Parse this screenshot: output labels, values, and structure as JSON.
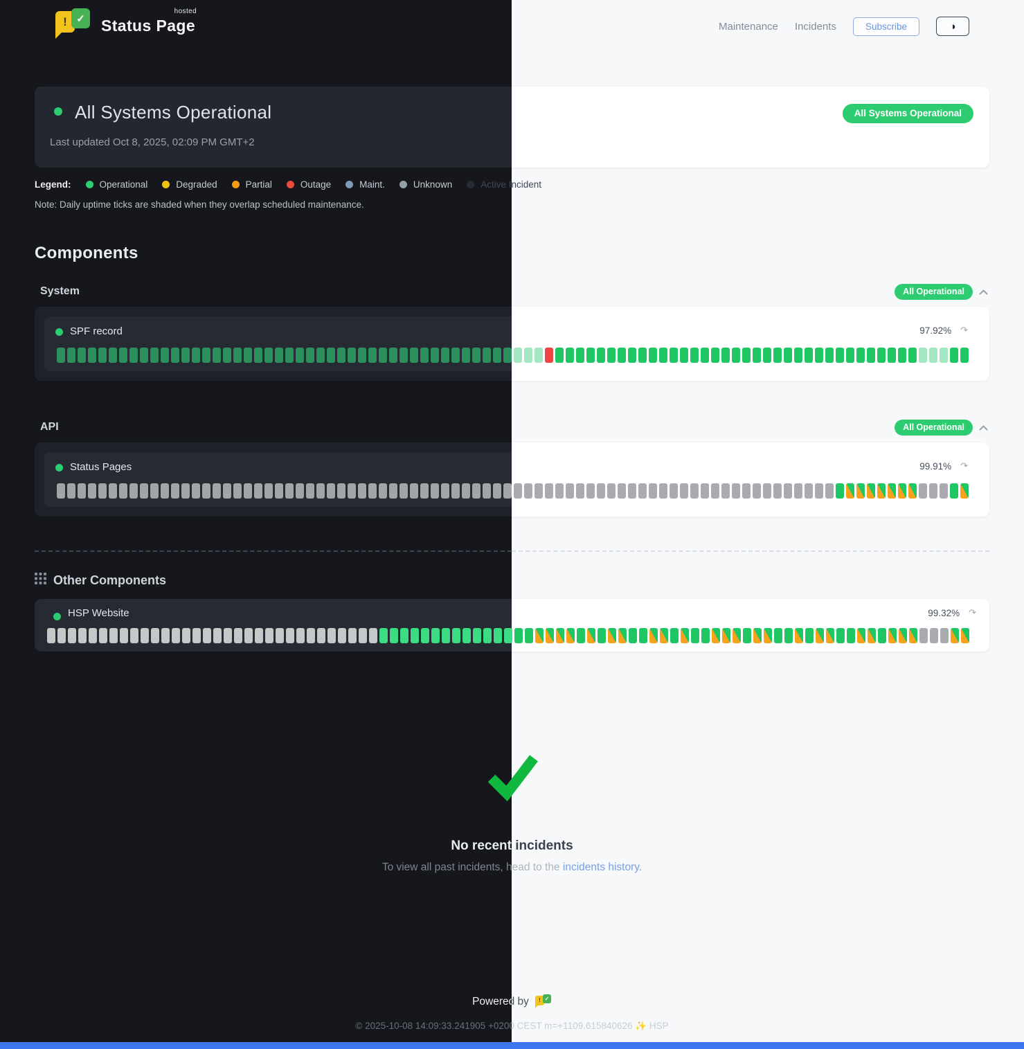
{
  "theme": {
    "accent_green": "#2ecc71",
    "tick_colors": {
      "o_light": "#1fc764",
      "f_light": "#a3e8c2",
      "x": "#ef4444",
      "u_light": "#a9abb0",
      "m_green": "#1fc764",
      "m_orange": "#f6a21a"
    }
  },
  "header": {
    "brand": "Status Page",
    "brand_sup": "hosted",
    "nav": [
      {
        "label": "Maintenance"
      },
      {
        "label": "Incidents"
      }
    ],
    "subscribe_label": "Subscribe",
    "theme_toggle_icon": "◑"
  },
  "banner": {
    "title": "All Systems Operational",
    "last_updated": "Last updated Oct 8, 2025, 02:09 PM GMT+2",
    "badge": "All Systems Operational"
  },
  "legend": {
    "label": "Legend:",
    "items": [
      {
        "label": "Operational",
        "dot_style": "background:#2ecc71"
      },
      {
        "label": "Degraded",
        "dot_style": "background:#f1c40f"
      },
      {
        "label": "Partial",
        "dot_style": "background:#f39c12"
      },
      {
        "label": "Outage",
        "dot_style": "background:#e74c3c"
      },
      {
        "label": "Maint.",
        "dot_style": "background:#7f9bb3"
      },
      {
        "label": "Unknown",
        "dot_style": "background:#95a0a6"
      },
      {
        "label": "Active Incident",
        "dot_style": "background:#262b32"
      }
    ],
    "note": "Note: Daily uptime ticks are shaded when they overlap scheduled maintenance."
  },
  "components": {
    "heading": "Components",
    "groups": [
      {
        "name": "System",
        "badge": "All Operational",
        "rows": [
          {
            "name": "SPF record",
            "uptime": "97.92%",
            "ticks": [
              [
                "o",
                44
              ],
              [
                "f",
                3
              ],
              [
                "x",
                1
              ],
              [
                "o",
                35
              ],
              [
                "f",
                3
              ],
              [
                "o",
                2
              ]
            ],
            "tick_dark_overrides": {
              "o": "#2e8f5e"
            }
          }
        ]
      },
      {
        "name": "API",
        "badge": "All Operational",
        "rows": [
          {
            "name": "Status Pages",
            "uptime": "99.91%",
            "ticks": [
              [
                "u",
                75
              ],
              [
                "o",
                1
              ],
              [
                "m",
                7
              ],
              [
                "u",
                3
              ],
              [
                "o",
                1
              ],
              [
                "m",
                1
              ]
            ],
            "tick_dark_overrides": {
              "u": "#a2a4a8"
            }
          }
        ]
      }
    ],
    "other": {
      "heading": "Other Components",
      "rows": [
        {
          "name": "HSP Website",
          "uptime": "99.32%",
          "ticks": [
            [
              "u",
              32
            ],
            [
              "o",
              13
            ],
            [
              "o",
              2
            ],
            [
              "m",
              4
            ],
            [
              "o",
              1
            ],
            [
              "m",
              1
            ],
            [
              "o",
              1
            ],
            [
              "m",
              2
            ],
            [
              "o",
              2
            ],
            [
              "m",
              2
            ],
            [
              "o",
              1
            ],
            [
              "m",
              1
            ],
            [
              "o",
              2
            ],
            [
              "m",
              3
            ],
            [
              "o",
              1
            ],
            [
              "m",
              2
            ],
            [
              "o",
              2
            ],
            [
              "m",
              1
            ],
            [
              "o",
              1
            ],
            [
              "m",
              2
            ],
            [
              "o",
              2
            ],
            [
              "m",
              2
            ],
            [
              "o",
              1
            ],
            [
              "m",
              3
            ],
            [
              "u",
              3
            ],
            [
              "m",
              2
            ]
          ],
          "tick_dark_overrides": {
            "u": "#c6c7c9",
            "o": "#3cdc83"
          }
        }
      ]
    }
  },
  "incidents": {
    "title": "No recent incidents",
    "subtitle_prefix": "To view all past incidents, head to the ",
    "link_label": "incidents history."
  },
  "footer": {
    "powered_by": "Powered by",
    "copyright": "© 2025-10-08 14:09:33.241905 +0200 CEST m=+1109.615840626 ✨ HSP"
  }
}
